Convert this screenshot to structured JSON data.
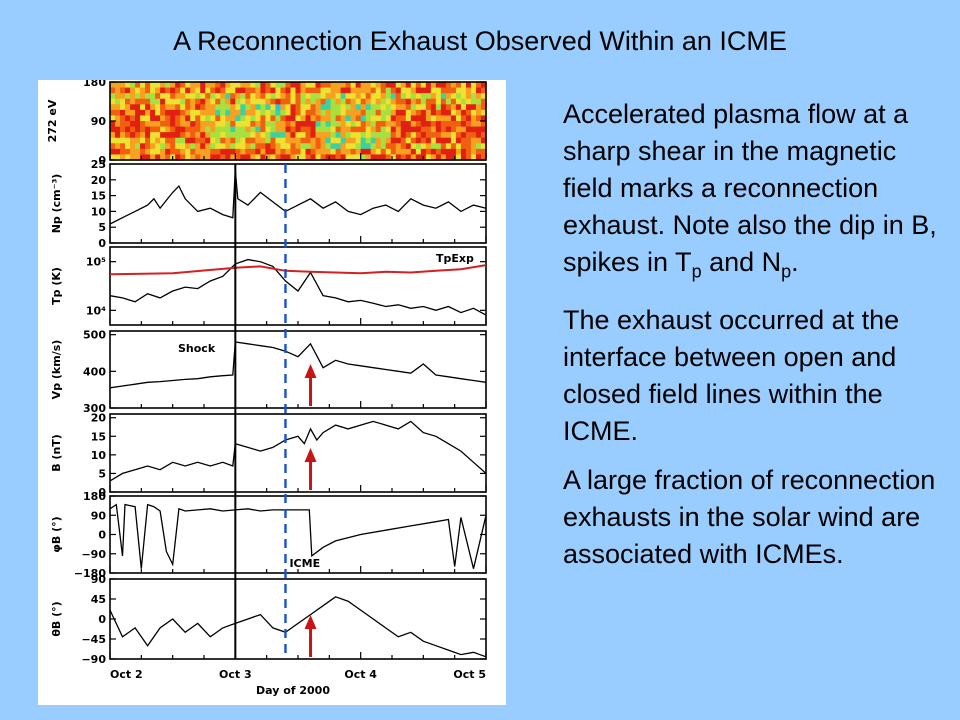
{
  "title": "A Reconnection Exhaust Observed Within an ICME",
  "paragraphs": [
    {
      "runs": [
        {
          "text": "Accelerated plasma flow at a sharp shear in the magnetic field marks a reconnection exhaust. Note also the dip in B, spikes in T"
        },
        {
          "text": "p",
          "sub": true
        },
        {
          "text": " and N"
        },
        {
          "text": "p",
          "sub": true
        },
        {
          "text": "."
        }
      ]
    },
    {
      "runs": [
        {
          "text": "The exhaust occurred at the interface between open and closed field lines within the ICME."
        }
      ]
    },
    {
      "runs": [
        {
          "text": "A large fraction of reconnection exhausts in the solar wind are associated with ICMEs."
        }
      ]
    }
  ],
  "colors": {
    "background": "#99ccff",
    "trace": "#000000",
    "tpexp": "#d42020",
    "icme_line": "#1a4fd6",
    "arrow": "#c81414"
  },
  "chart_data": {
    "type": "line",
    "x_axis": {
      "label": "Day of 2000",
      "ticks": [
        "Oct 2",
        "Oct 3",
        "Oct 4",
        "Oct 5"
      ],
      "range_days": [
        0,
        3
      ]
    },
    "markers": {
      "shock": {
        "label": "Shock",
        "x_day": 1.0
      },
      "icme_start": {
        "label": "ICME",
        "x_day": 1.4
      },
      "exhaust": {
        "x_day": 1.6
      }
    },
    "panels": [
      {
        "key": "spectrogram",
        "type": "heatmap",
        "ylabel": "272 eV",
        "ytick_labels": [
          "180",
          "90",
          "0"
        ],
        "yticks": [
          180,
          90,
          0
        ],
        "ylim": [
          0,
          180
        ]
      },
      {
        "key": "np",
        "ylabel": "Np (cm⁻³)",
        "ytick_labels": [
          "25",
          "20",
          "15",
          "10",
          "5",
          "0"
        ],
        "yticks": [
          25,
          20,
          15,
          10,
          5,
          0
        ],
        "ylim": [
          0,
          25
        ],
        "series": [
          {
            "x": [
              0,
              0.1,
              0.2,
              0.3,
              0.35,
              0.4,
              0.5,
              0.55,
              0.6,
              0.7,
              0.8,
              0.9,
              0.98,
              1.0,
              1.02,
              1.1,
              1.2,
              1.3,
              1.4,
              1.5,
              1.6,
              1.7,
              1.8,
              1.9,
              2.0,
              2.1,
              2.2,
              2.3,
              2.4,
              2.5,
              2.6,
              2.7,
              2.8,
              2.9,
              3.0
            ],
            "y": [
              6,
              8,
              10,
              12,
              14,
              11,
              16,
              18,
              14,
              10,
              11,
              9,
              8,
              23,
              14,
              12,
              16,
              13,
              10,
              12,
              14,
              11,
              13,
              10,
              9,
              11,
              12,
              10,
              14,
              12,
              11,
              13,
              10,
              12,
              11
            ]
          }
        ]
      },
      {
        "key": "tp",
        "ylabel": "Tp (K)",
        "ytick_labels": [
          "10⁵",
          "10⁴"
        ],
        "yticks": [
          100000,
          10000
        ],
        "ylim": [
          5000,
          200000
        ],
        "log_y": true,
        "series": [
          {
            "x": [
              0,
              0.1,
              0.2,
              0.3,
              0.4,
              0.5,
              0.6,
              0.7,
              0.8,
              0.9,
              1.0,
              1.1,
              1.2,
              1.3,
              1.4,
              1.5,
              1.6,
              1.7,
              1.8,
              1.9,
              2.0,
              2.1,
              2.2,
              2.3,
              2.4,
              2.5,
              2.6,
              2.7,
              2.8,
              2.9,
              3.0
            ],
            "y": [
              20000,
              18000,
              15000,
              22000,
              18000,
              25000,
              30000,
              28000,
              40000,
              50000,
              90000,
              110000,
              100000,
              80000,
              40000,
              25000,
              60000,
              20000,
              18000,
              15000,
              16000,
              14000,
              12000,
              13000,
              11000,
              12000,
              10000,
              12000,
              9000,
              11000,
              8000
            ]
          },
          {
            "name": "TpExp",
            "x": [
              0,
              0.5,
              1.0,
              1.2,
              1.4,
              1.6,
              1.8,
              2.0,
              2.2,
              2.4,
              2.6,
              2.8,
              3.0
            ],
            "y": [
              55000,
              58000,
              75000,
              80000,
              65000,
              62000,
              60000,
              58000,
              62000,
              60000,
              65000,
              70000,
              85000
            ]
          }
        ]
      },
      {
        "key": "vp",
        "ylabel": "Vp (km/s)",
        "ytick_labels": [
          "500",
          "400",
          "300"
        ],
        "yticks": [
          500,
          400,
          300
        ],
        "ylim": [
          300,
          510
        ],
        "series": [
          {
            "x": [
              0,
              0.1,
              0.2,
              0.3,
              0.4,
              0.5,
              0.6,
              0.7,
              0.8,
              0.9,
              0.98,
              1.0,
              1.1,
              1.2,
              1.3,
              1.4,
              1.5,
              1.6,
              1.7,
              1.8,
              1.9,
              2.0,
              2.1,
              2.2,
              2.3,
              2.4,
              2.5,
              2.6,
              2.7,
              2.8,
              2.9,
              3.0
            ],
            "y": [
              355,
              360,
              365,
              370,
              372,
              375,
              378,
              380,
              385,
              388,
              390,
              480,
              475,
              470,
              465,
              455,
              440,
              475,
              410,
              430,
              420,
              415,
              410,
              405,
              400,
              395,
              420,
              390,
              385,
              380,
              375,
              370
            ]
          }
        ]
      },
      {
        "key": "b",
        "ylabel": "B (nT)",
        "ytick_labels": [
          "20",
          "15",
          "10",
          "5",
          "0"
        ],
        "yticks": [
          20,
          15,
          10,
          5,
          0
        ],
        "ylim": [
          0,
          21
        ],
        "series": [
          {
            "x": [
              0,
              0.1,
              0.2,
              0.3,
              0.4,
              0.5,
              0.6,
              0.7,
              0.8,
              0.9,
              0.98,
              1.0,
              1.1,
              1.2,
              1.3,
              1.4,
              1.5,
              1.55,
              1.6,
              1.65,
              1.7,
              1.8,
              1.9,
              2.0,
              2.1,
              2.2,
              2.3,
              2.4,
              2.5,
              2.6,
              2.7,
              2.8,
              2.9,
              3.0
            ],
            "y": [
              3,
              5,
              6,
              7,
              6,
              8,
              7,
              8,
              7,
              8,
              7,
              13,
              12,
              11,
              12,
              14,
              15,
              13,
              17,
              14,
              16,
              18,
              17,
              18,
              19,
              18,
              17,
              19,
              16,
              15,
              13,
              11,
              8,
              5
            ]
          }
        ]
      },
      {
        "key": "phib",
        "ylabel": "φB (°)",
        "ytick_labels": [
          "180",
          "90",
          "0",
          "−90",
          "−180"
        ],
        "yticks": [
          180,
          90,
          0,
          -90,
          -180
        ],
        "ylim": [
          -180,
          180
        ],
        "series": [
          {
            "x": [
              0,
              0.05,
              0.1,
              0.12,
              0.2,
              0.25,
              0.3,
              0.35,
              0.4,
              0.45,
              0.5,
              0.55,
              0.6,
              0.7,
              0.8,
              0.9,
              1.0,
              1.1,
              1.2,
              1.3,
              1.4,
              1.5,
              1.59,
              1.61,
              1.7,
              1.8,
              2.0,
              2.2,
              2.4,
              2.6,
              2.7,
              2.75,
              2.8,
              2.9,
              3.0
            ],
            "y": [
              120,
              140,
              -100,
              140,
              130,
              -160,
              140,
              130,
              110,
              -80,
              -140,
              120,
              110,
              115,
              120,
              110,
              115,
              120,
              110,
              115,
              115,
              115,
              115,
              -100,
              -60,
              -30,
              0,
              20,
              40,
              60,
              70,
              -150,
              80,
              -160,
              90
            ]
          }
        ]
      },
      {
        "key": "thetab",
        "ylabel": "θB (°)",
        "ytick_labels": [
          "90",
          "45",
          "0",
          "−45",
          "−90"
        ],
        "yticks": [
          90,
          45,
          0,
          -45,
          -90
        ],
        "ylim": [
          -90,
          90
        ],
        "series": [
          {
            "x": [
              0,
              0.1,
              0.2,
              0.3,
              0.4,
              0.5,
              0.6,
              0.7,
              0.8,
              0.9,
              1.0,
              1.1,
              1.2,
              1.3,
              1.4,
              1.5,
              1.6,
              1.7,
              1.8,
              1.9,
              2.0,
              2.1,
              2.2,
              2.3,
              2.4,
              2.5,
              2.6,
              2.7,
              2.8,
              2.9,
              3.0
            ],
            "y": [
              20,
              -40,
              -20,
              -60,
              -20,
              0,
              -30,
              -10,
              -40,
              -20,
              -10,
              0,
              10,
              -20,
              -30,
              -10,
              10,
              30,
              50,
              40,
              20,
              0,
              -20,
              -40,
              -30,
              -50,
              -60,
              -70,
              -80,
              -75,
              -85
            ]
          }
        ]
      }
    ]
  }
}
